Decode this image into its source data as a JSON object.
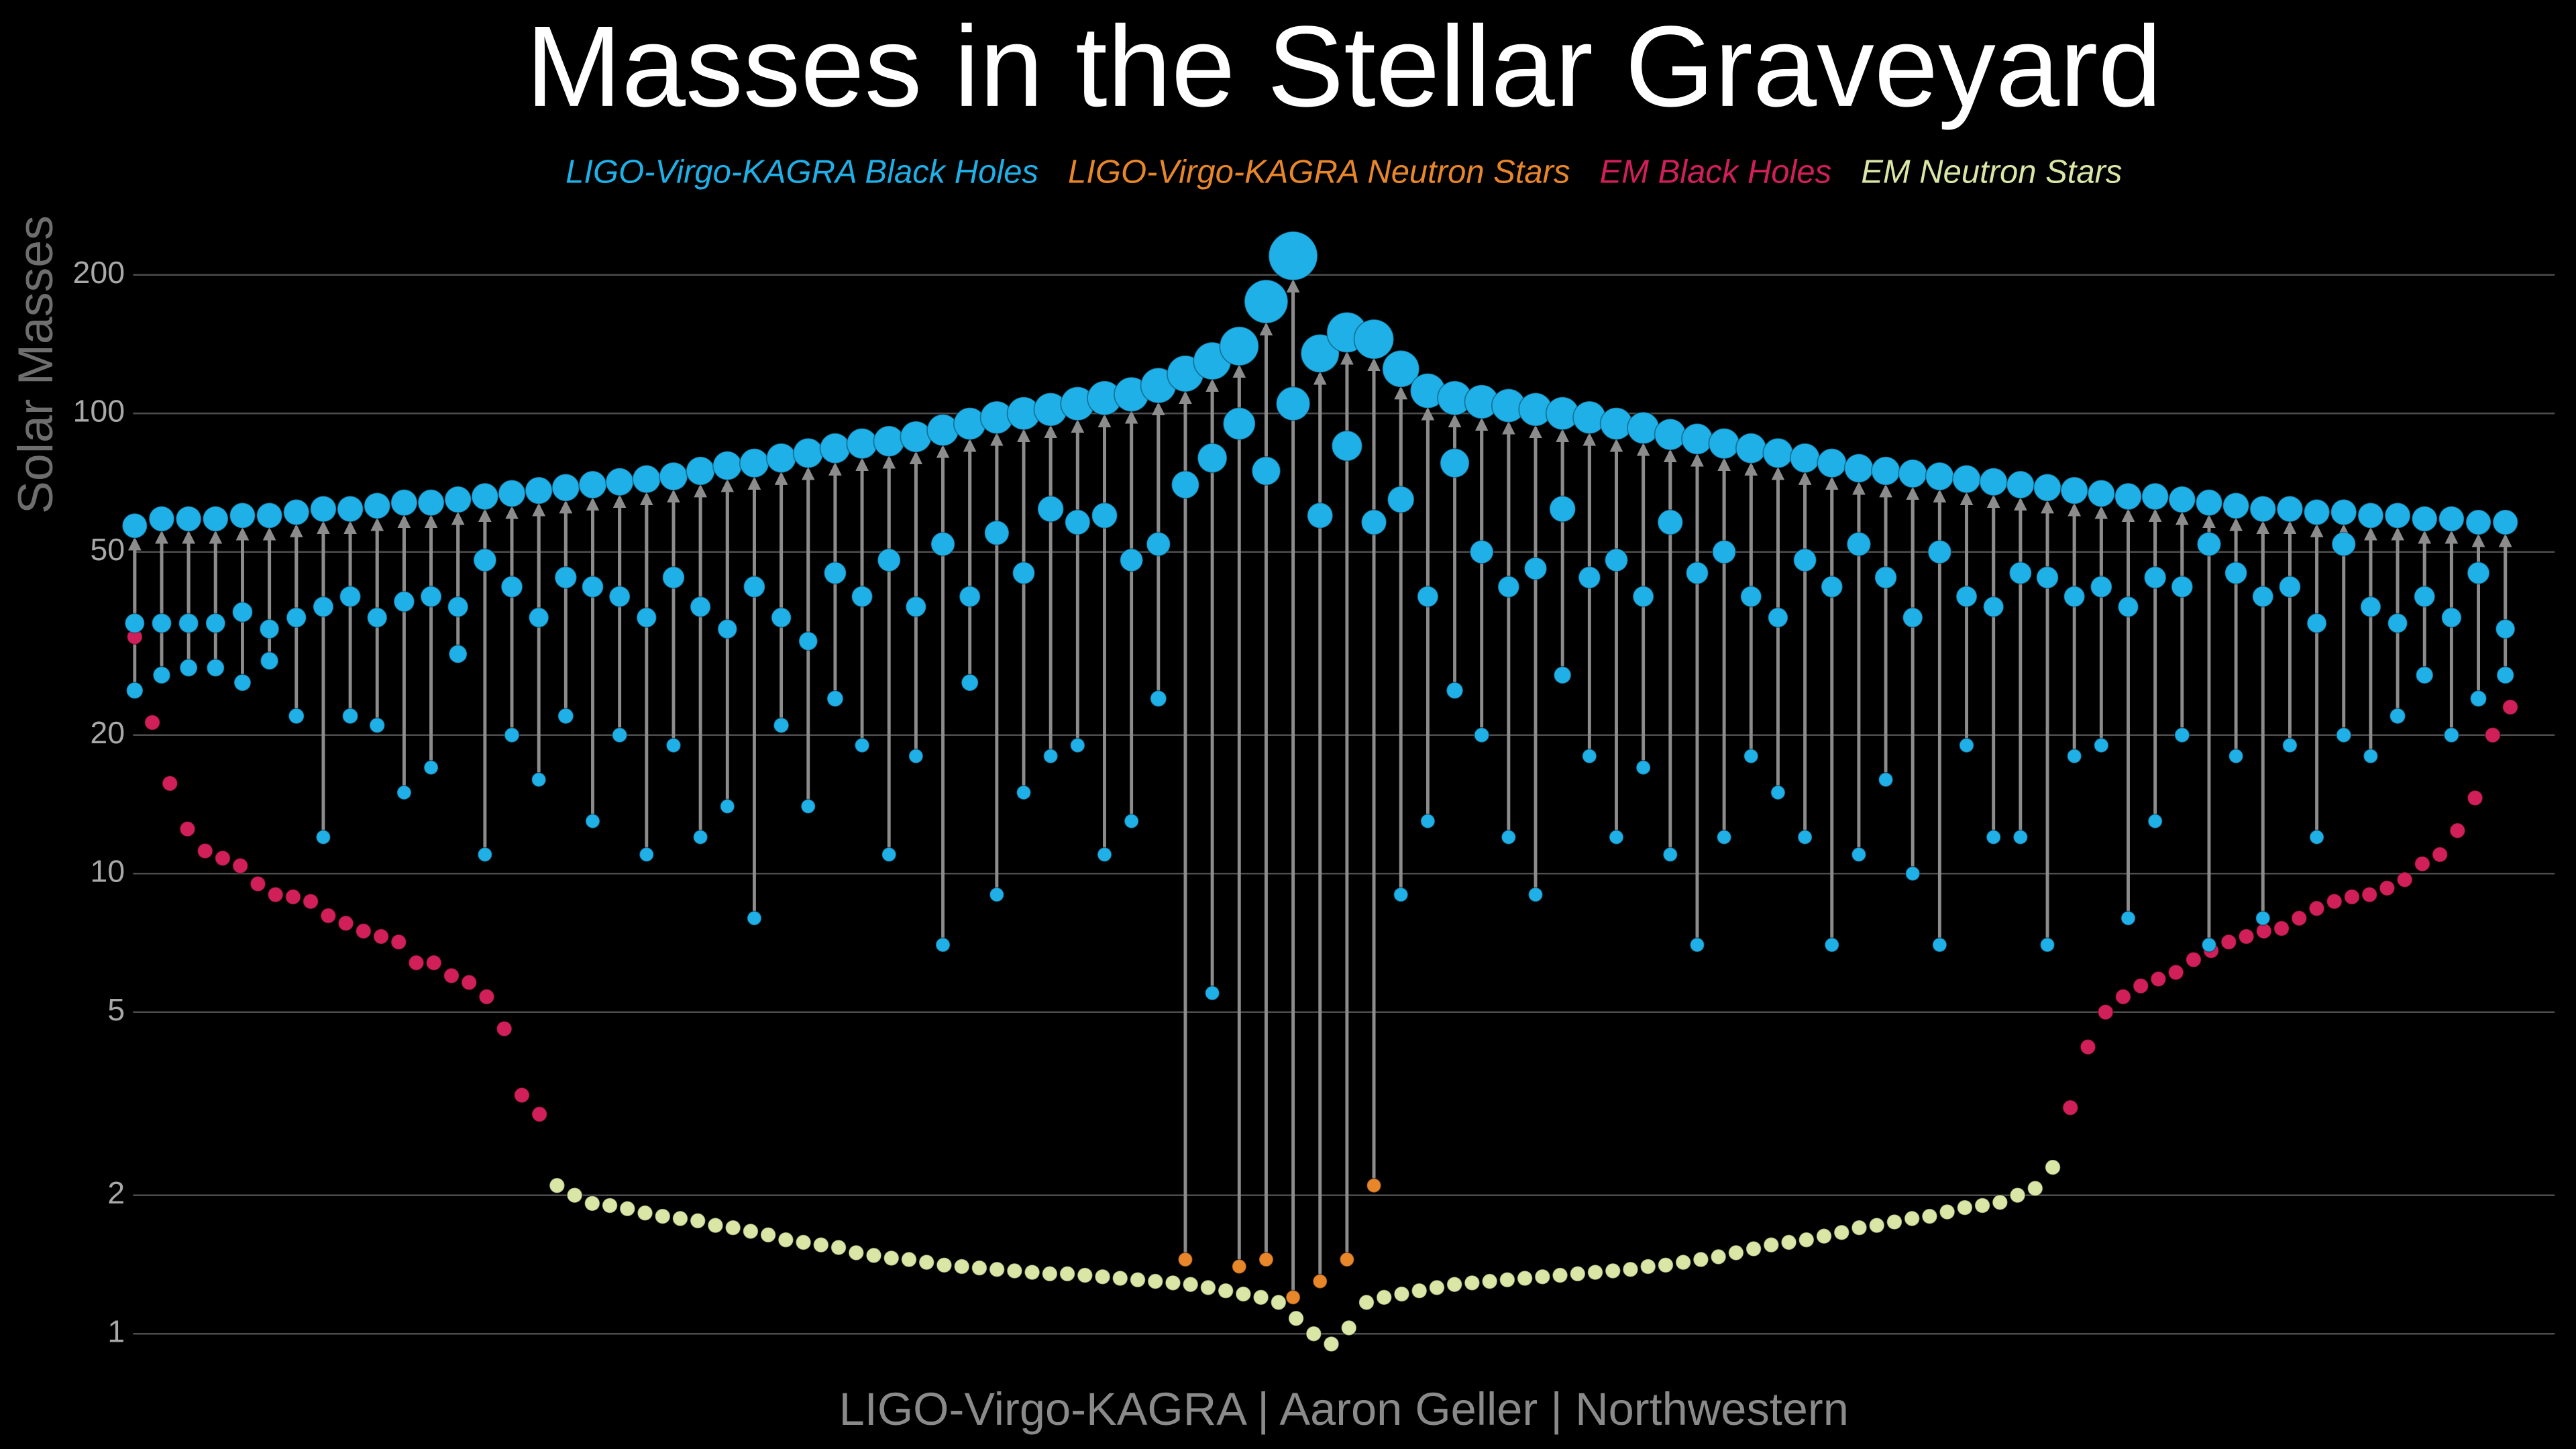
{
  "chart_data": {
    "type": "scatter",
    "title": "Masses in the Stellar Graveyard",
    "y_label": "Solar Masses",
    "caption": "LIGO-Virgo-KAGRA | Aaron Geller | Northwestern",
    "log_y": true,
    "grid": true,
    "ylim": [
      0.8,
      300
    ],
    "yticks": [
      1,
      2,
      5,
      10,
      20,
      50,
      100,
      200
    ],
    "series": [
      {
        "name": "LIGO-Virgo-KAGRA Black Holes",
        "color": "#1fb0e8",
        "primary": [
          35,
          35,
          35,
          35,
          37,
          34,
          36,
          38,
          40,
          36,
          39,
          40,
          38,
          48,
          42,
          36,
          44,
          42,
          40,
          36,
          44,
          38,
          34,
          42,
          36,
          32,
          45,
          40,
          48,
          38,
          52,
          40,
          55,
          45,
          62,
          58,
          60,
          48,
          52,
          70,
          80,
          95,
          75,
          105,
          60,
          85,
          58,
          65,
          40,
          78,
          50,
          42,
          46,
          62,
          44,
          48,
          40,
          58,
          45,
          50,
          40,
          36,
          48,
          42,
          52,
          44,
          36,
          50,
          40,
          38,
          45,
          44,
          40,
          42,
          38,
          44,
          42,
          52,
          45,
          40,
          42,
          35,
          52,
          38,
          35,
          40,
          36,
          45,
          34
        ],
        "secondary": [
          25,
          27,
          28,
          28,
          26,
          29,
          22,
          12,
          22,
          21,
          15,
          17,
          30,
          11,
          20,
          16,
          22,
          13,
          20,
          11,
          19,
          12,
          14,
          8,
          21,
          14,
          24,
          19,
          11,
          18,
          7,
          26,
          9,
          15,
          18,
          19,
          11,
          13,
          24,
          null,
          5.5,
          null,
          null,
          null,
          null,
          null,
          null,
          9,
          13,
          25,
          20,
          12,
          9,
          27,
          18,
          12,
          17,
          11,
          7,
          12,
          18,
          15,
          12,
          7,
          11,
          16,
          10,
          7,
          19,
          12,
          12,
          7,
          18,
          19,
          8,
          13,
          20,
          7,
          18,
          8,
          19,
          12,
          20,
          18,
          22,
          27,
          20,
          24,
          27
        ],
        "remnant": [
          57,
          59,
          59,
          59,
          60,
          60,
          61,
          62,
          62,
          63,
          64,
          64,
          65,
          66,
          67,
          68,
          69,
          70,
          71,
          72,
          73,
          75,
          77,
          78,
          80,
          82,
          84,
          86,
          87,
          89,
          92,
          95,
          98,
          100,
          102,
          105,
          108,
          110,
          115,
          122,
          130,
          140,
          175,
          220,
          135,
          150,
          145,
          125,
          112,
          108,
          106,
          104,
          102,
          100,
          98,
          95,
          93,
          90,
          88,
          86,
          84,
          82,
          80,
          78,
          76,
          75,
          74,
          73,
          72,
          71,
          70,
          69,
          68,
          67,
          66,
          66,
          65,
          64,
          63,
          62,
          62,
          61,
          61,
          60,
          60,
          59,
          59,
          58,
          58
        ]
      },
      {
        "name": "LIGO-Virgo-KAGRA Neutron Stars",
        "color": "#e8862a",
        "secondary": [
          null,
          null,
          null,
          null,
          null,
          null,
          null,
          null,
          null,
          null,
          null,
          null,
          null,
          null,
          null,
          null,
          null,
          null,
          null,
          null,
          null,
          null,
          null,
          null,
          null,
          null,
          null,
          null,
          null,
          null,
          null,
          null,
          null,
          null,
          null,
          null,
          null,
          null,
          null,
          1.45,
          null,
          1.4,
          1.45,
          1.2,
          1.3,
          1.45,
          2.1,
          null,
          null,
          null,
          null,
          null,
          null,
          null,
          null,
          null,
          null,
          null,
          null,
          null,
          null,
          null,
          null,
          null,
          null,
          null,
          null,
          null,
          null,
          null,
          null,
          null,
          null,
          null,
          null,
          null,
          null,
          null,
          null,
          null,
          null,
          null,
          null,
          null,
          null,
          null,
          null,
          null,
          null
        ]
      },
      {
        "name": "EM Black Holes",
        "color": "#d11f5a",
        "values": [
          32.7,
          21.3,
          15.7,
          12.5,
          11.2,
          10.8,
          10.4,
          9.5,
          9.0,
          8.9,
          8.7,
          8.1,
          7.8,
          7.5,
          7.3,
          7.1,
          6.4,
          6.4,
          6.0,
          5.8,
          5.4,
          4.6,
          3.3,
          3.0,
          null,
          null,
          null,
          null,
          null,
          null,
          null,
          null,
          null,
          null,
          null,
          null,
          null,
          null,
          null,
          null,
          null,
          null,
          null,
          null,
          null,
          null,
          null,
          null,
          null,
          null,
          null,
          null,
          null,
          null,
          null,
          null,
          null,
          null,
          null,
          null,
          null,
          null,
          null,
          null,
          null,
          null,
          null,
          null,
          null,
          null,
          null,
          null,
          null,
          null,
          null,
          null,
          null,
          null,
          null,
          null,
          null,
          null,
          null,
          null,
          null,
          null,
          null,
          null,
          null,
          null,
          null,
          null,
          null,
          null,
          null,
          null,
          null,
          null,
          null,
          null,
          null,
          null,
          null,
          null,
          null,
          null,
          null,
          null,
          null,
          null,
          3.1,
          4.2,
          5.0,
          5.4,
          5.7,
          5.9,
          6.1,
          6.5,
          6.8,
          7.1,
          7.3,
          7.5,
          7.6,
          8.0,
          8.4,
          8.7,
          8.9,
          9.0,
          9.3,
          9.7,
          10.5,
          11.0,
          12.4,
          14.6,
          20,
          23
        ]
      },
      {
        "name": "EM Neutron Stars",
        "color": "#d9e6a6",
        "values": [
          null,
          null,
          null,
          null,
          null,
          null,
          null,
          null,
          null,
          null,
          null,
          null,
          null,
          null,
          null,
          null,
          null,
          null,
          null,
          null,
          null,
          null,
          null,
          null,
          2.1,
          2.0,
          1.92,
          1.9,
          1.87,
          1.83,
          1.8,
          1.78,
          1.76,
          1.72,
          1.7,
          1.67,
          1.64,
          1.6,
          1.58,
          1.56,
          1.54,
          1.5,
          1.48,
          1.46,
          1.45,
          1.43,
          1.41,
          1.4,
          1.39,
          1.38,
          1.37,
          1.36,
          1.35,
          1.35,
          1.34,
          1.33,
          1.32,
          1.31,
          1.3,
          1.29,
          1.28,
          1.26,
          1.24,
          1.22,
          1.2,
          1.17,
          1.08,
          1.0,
          0.95,
          1.03,
          1.17,
          1.2,
          1.22,
          1.24,
          1.26,
          1.28,
          1.29,
          1.3,
          1.31,
          1.32,
          1.33,
          1.34,
          1.35,
          1.36,
          1.37,
          1.38,
          1.4,
          1.41,
          1.43,
          1.45,
          1.47,
          1.5,
          1.53,
          1.56,
          1.58,
          1.6,
          1.63,
          1.66,
          1.7,
          1.72,
          1.75,
          1.78,
          1.8,
          1.84,
          1.88,
          1.9,
          1.93,
          2.0,
          2.07,
          2.3,
          null,
          null,
          null,
          null,
          null,
          null,
          null,
          null,
          null,
          null,
          null,
          null,
          null,
          null,
          null,
          null,
          null,
          null,
          null,
          null,
          null,
          null,
          null,
          null,
          null,
          null
        ]
      }
    ]
  }
}
